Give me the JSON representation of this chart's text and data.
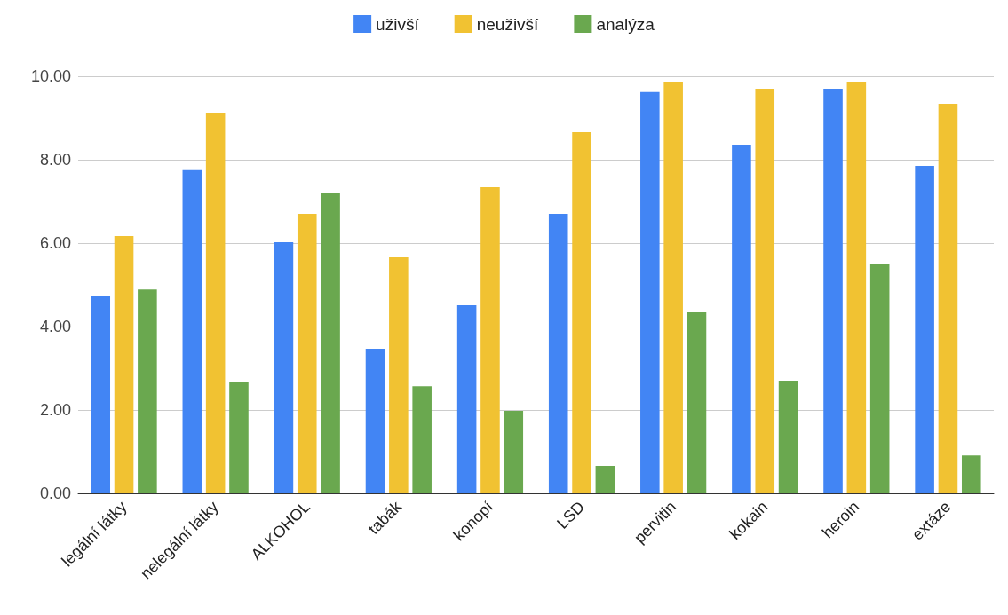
{
  "chart_data": {
    "type": "bar",
    "categories": [
      "legální látky",
      "nelegální látky",
      "ALKOHOL",
      "tabák",
      "konopí",
      "LSD",
      "pervitin",
      "kokain",
      "heroin",
      "extáze"
    ],
    "series": [
      {
        "name": "uživší",
        "color": "#4285f4",
        "values": [
          4.74,
          7.77,
          6.02,
          3.47,
          4.51,
          6.7,
          9.62,
          8.36,
          9.7,
          7.85
        ]
      },
      {
        "name": "neuživší",
        "color": "#f1c232",
        "values": [
          6.17,
          9.13,
          6.7,
          5.66,
          7.34,
          8.66,
          9.87,
          9.7,
          9.87,
          9.34
        ]
      },
      {
        "name": "analýza",
        "color": "#6aa84f",
        "values": [
          4.89,
          2.66,
          7.21,
          2.57,
          1.98,
          0.66,
          4.34,
          2.7,
          5.49,
          0.91
        ]
      }
    ],
    "ylim": [
      0,
      10
    ],
    "yticks": [
      {
        "value": 0,
        "label": "0.00"
      },
      {
        "value": 2,
        "label": "2.00"
      },
      {
        "value": 4,
        "label": "4.00"
      },
      {
        "value": 6,
        "label": "6.00"
      },
      {
        "value": 8,
        "label": "8.00"
      },
      {
        "value": 10,
        "label": "10.00"
      }
    ],
    "grid": "y",
    "legend": "top"
  }
}
